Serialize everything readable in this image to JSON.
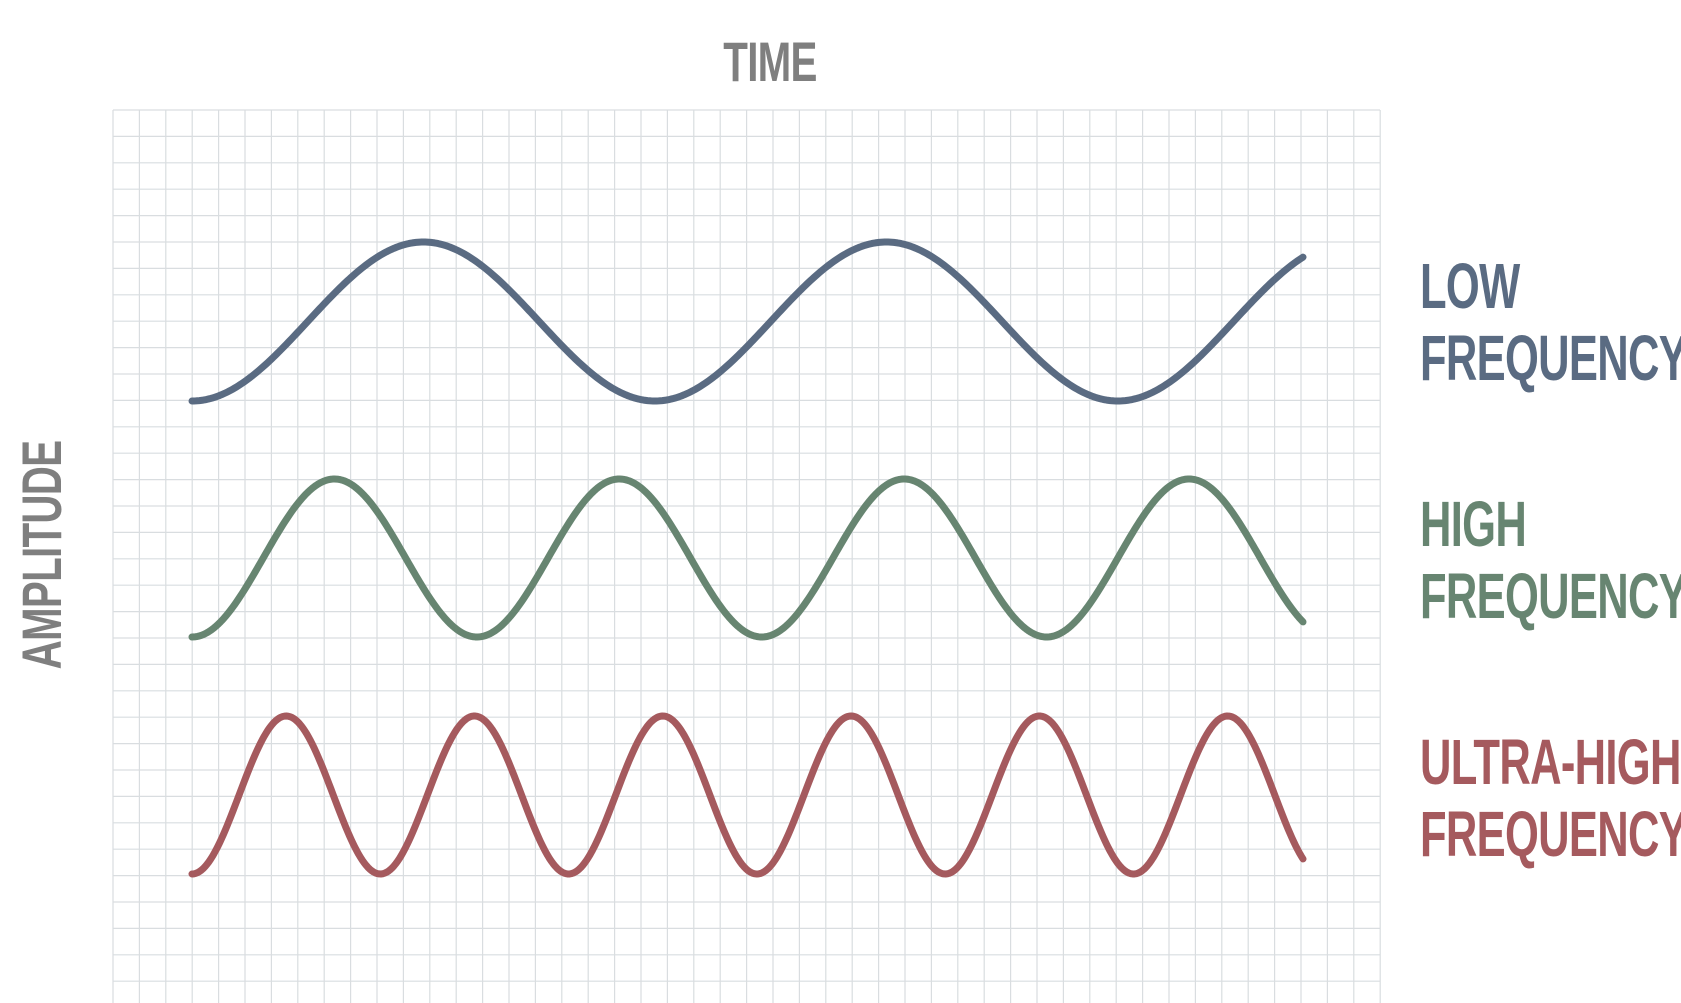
{
  "labels": {
    "time": "TIME",
    "amplitude": "AMPLITUDE"
  },
  "waves": [
    {
      "id": "low",
      "line1": "LOW",
      "line2": "FREQUENCY",
      "color": "#5a6b82",
      "cycles": 2.4
    },
    {
      "id": "high",
      "line1": "HIGH",
      "line2": "FREQUENCY",
      "color": "#678571",
      "cycles": 3.9
    },
    {
      "id": "ultra",
      "line1": "ULTRA-HIGH",
      "line2": "FREQUENCY",
      "color": "#a55a5e",
      "cycles": 5.9
    }
  ],
  "grid": true
}
